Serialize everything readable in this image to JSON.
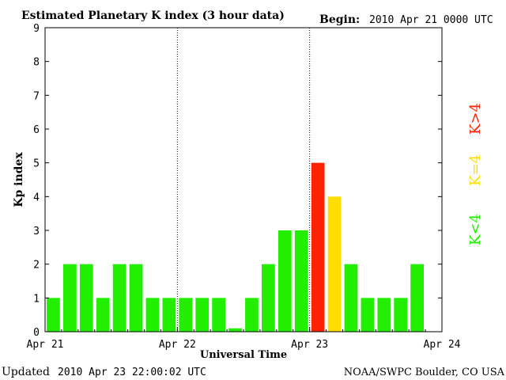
{
  "chart_data": {
    "type": "bar",
    "title": "Estimated Planetary K index (3 hour data)",
    "begin_label": "Begin:",
    "begin_value": "2010 Apr 21 0000 UTC",
    "xlabel": "Universal Time",
    "ylabel": "Kp index",
    "ylim": [
      0,
      9
    ],
    "yticks": [
      "0",
      "1",
      "2",
      "3",
      "4",
      "5",
      "6",
      "7",
      "8",
      "9"
    ],
    "xticks": [
      "Apr 21",
      "Apr 22",
      "Apr 23",
      "Apr 24"
    ],
    "grid": "vertical dotted day separators",
    "bar_interval_hours": 3,
    "values": [
      1,
      2,
      2,
      1,
      2,
      2,
      1,
      1,
      1,
      1,
      1,
      0.1,
      1,
      2,
      3,
      3,
      5,
      4,
      2,
      1,
      1,
      1,
      2
    ],
    "legend_items": [
      {
        "label": "K>4",
        "color": "#ff2200"
      },
      {
        "label": "K=4",
        "color": "#ffdd00"
      },
      {
        "label": "K<4",
        "color": "#22ee00"
      }
    ],
    "colors": {
      "low": "#22ee00",
      "equal": "#ffdd00",
      "high": "#ff2200"
    }
  },
  "footer": {
    "updated_label": "Updated",
    "updated_value": "2010 Apr 23 22:00:02 UTC",
    "source": "NOAA/SWPC Boulder, CO USA"
  }
}
